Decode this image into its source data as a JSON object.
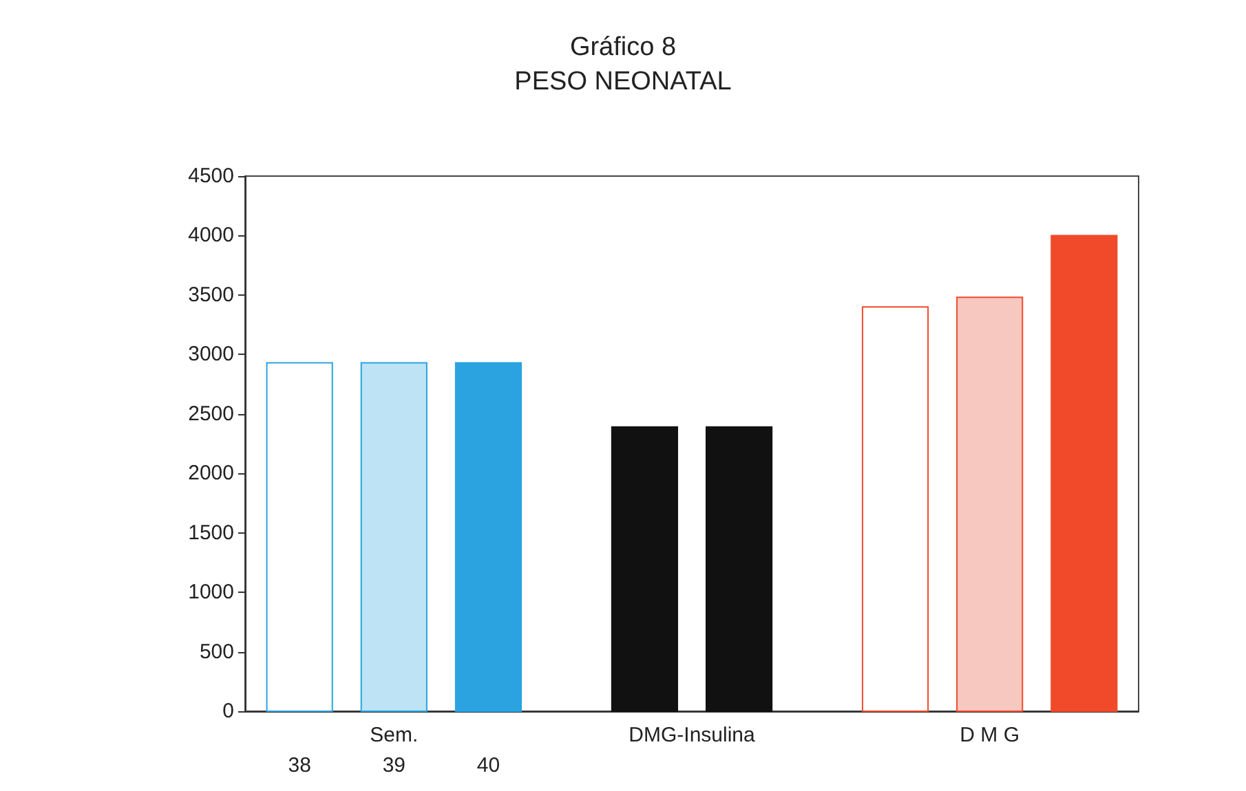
{
  "chart_data": {
    "type": "bar",
    "title": "Gráfico 8",
    "subtitle": "PESO NEONATAL",
    "categories": [
      "Sem.",
      "DMG-Insulina",
      "D M G"
    ],
    "series": [
      {
        "name": "38",
        "colors": [
          "#ffffff",
          "#111111",
          "#ffffff"
        ],
        "values": [
          2930,
          2390,
          3400
        ]
      },
      {
        "name": "39",
        "colors": [
          "#bde3f5",
          "#111111",
          "#f6c8c0"
        ],
        "values": [
          2930,
          2390,
          3480
        ]
      },
      {
        "name": "40",
        "colors": [
          "#2aa3e0",
          null,
          "#f04a2a"
        ],
        "values": [
          2930,
          null,
          4000
        ]
      }
    ],
    "ylim": [
      0,
      4500
    ],
    "yticks": [
      0,
      500,
      1000,
      1500,
      2000,
      2500,
      3000,
      3500,
      4000,
      4500
    ],
    "grid": false
  }
}
